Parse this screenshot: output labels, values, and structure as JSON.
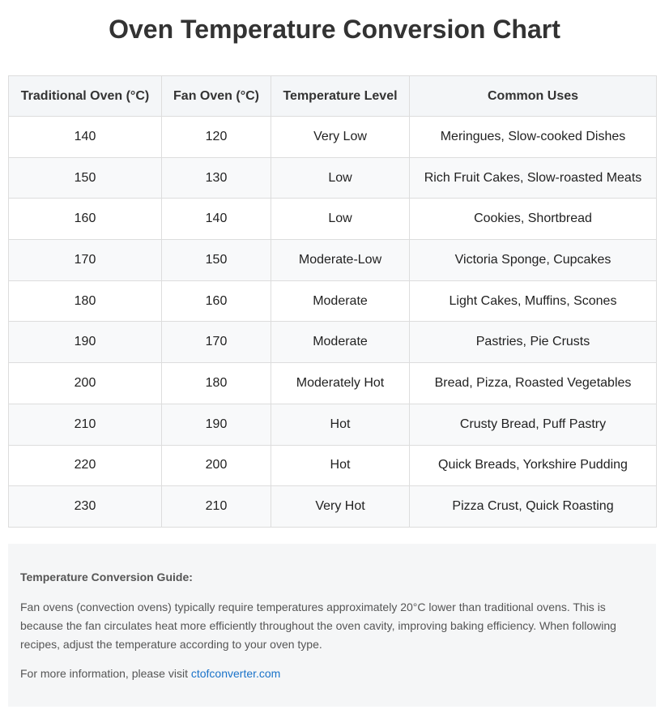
{
  "title": "Oven Temperature Conversion Chart",
  "table": {
    "headers": [
      "Traditional Oven (°C)",
      "Fan Oven (°C)",
      "Temperature Level",
      "Common Uses"
    ],
    "rows": [
      [
        "140",
        "120",
        "Very Low",
        "Meringues, Slow-cooked Dishes"
      ],
      [
        "150",
        "130",
        "Low",
        "Rich Fruit Cakes, Slow-roasted Meats"
      ],
      [
        "160",
        "140",
        "Low",
        "Cookies, Shortbread"
      ],
      [
        "170",
        "150",
        "Moderate-Low",
        "Victoria Sponge, Cupcakes"
      ],
      [
        "180",
        "160",
        "Moderate",
        "Light Cakes, Muffins, Scones"
      ],
      [
        "190",
        "170",
        "Moderate",
        "Pastries, Pie Crusts"
      ],
      [
        "200",
        "180",
        "Moderately Hot",
        "Bread, Pizza, Roasted Vegetables"
      ],
      [
        "210",
        "190",
        "Hot",
        "Crusty Bread, Puff Pastry"
      ],
      [
        "220",
        "200",
        "Hot",
        "Quick Breads, Yorkshire Pudding"
      ],
      [
        "230",
        "210",
        "Very Hot",
        "Pizza Crust, Quick Roasting"
      ]
    ]
  },
  "guide": {
    "title": "Temperature Conversion Guide:",
    "text": "Fan ovens (convection ovens) typically require temperatures approximately 20°C lower than traditional ovens. This is because the fan circulates heat more efficiently throughout the oven cavity, improving baking efficiency. When following recipes, adjust the temperature according to your oven type.",
    "more_prefix": "For more information, please visit ",
    "link_text": "ctofconverter.com"
  },
  "colors": {
    "link": "#1a73c9",
    "header_bg": "#f4f6f8",
    "guide_bg": "#f5f6f7"
  }
}
